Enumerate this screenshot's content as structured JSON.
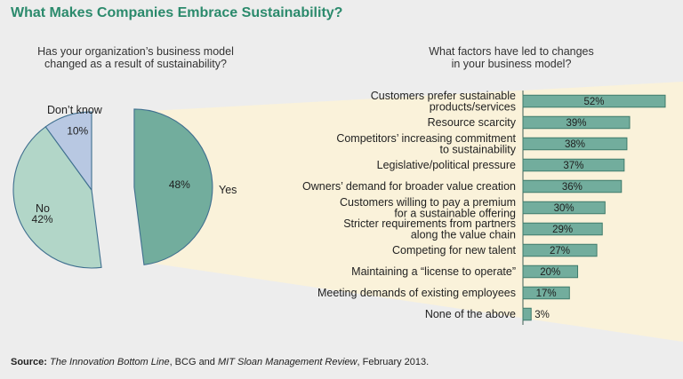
{
  "title": "What Makes Companies Embrace Sustainability?",
  "left_question": [
    "Has your organization’s business model",
    "changed as a result of sustainability?"
  ],
  "right_question": [
    "What factors have led to changes",
    "in your business model?"
  ],
  "colors": {
    "title": "#2b8a6c",
    "panel": "#faf2da",
    "bar_fill": "#72ad9d",
    "bar_stroke": "#3e7b6b",
    "pie_yes": "#72ad9d",
    "pie_no": "#b2d6c8",
    "pie_dontknow": "#b8c8e2"
  },
  "source": {
    "label": "Source:",
    "pub1": "The Innovation Bottom Line",
    "mid": ", BCG and ",
    "pub2": "MIT Sloan Management Review",
    "end": ", February 2013."
  },
  "chart_data": [
    {
      "type": "pie",
      "slices": [
        {
          "label": "Yes",
          "value": 48,
          "value_label": "48%"
        },
        {
          "label": "No",
          "value": 42,
          "value_label": "42%"
        },
        {
          "label": "Don’t know",
          "value": 10,
          "value_label": "10%"
        }
      ]
    },
    {
      "type": "bar",
      "orientation": "horizontal",
      "xlim": [
        0,
        52
      ],
      "categories": [
        [
          "Customers prefer sustainable",
          "products/services"
        ],
        [
          "Resource scarcity"
        ],
        [
          "Competitors’ increasing commitment",
          "to sustainability"
        ],
        [
          "Legislative/political pressure"
        ],
        [
          "Owners’ demand for broader value creation"
        ],
        [
          "Customers willing to pay a premium",
          "for a sustainable offering"
        ],
        [
          "Stricter requirements from partners",
          "along the value chain"
        ],
        [
          "Competing for new talent"
        ],
        [
          "Maintaining a “license to operate”"
        ],
        [
          "Meeting demands of existing employees"
        ],
        [
          "None of the above"
        ]
      ],
      "values": [
        52,
        39,
        38,
        37,
        36,
        30,
        29,
        27,
        20,
        17,
        3
      ],
      "value_labels": [
        "52%",
        "39%",
        "38%",
        "37%",
        "36%",
        "30%",
        "29%",
        "27%",
        "20%",
        "17%",
        "3%"
      ]
    }
  ]
}
